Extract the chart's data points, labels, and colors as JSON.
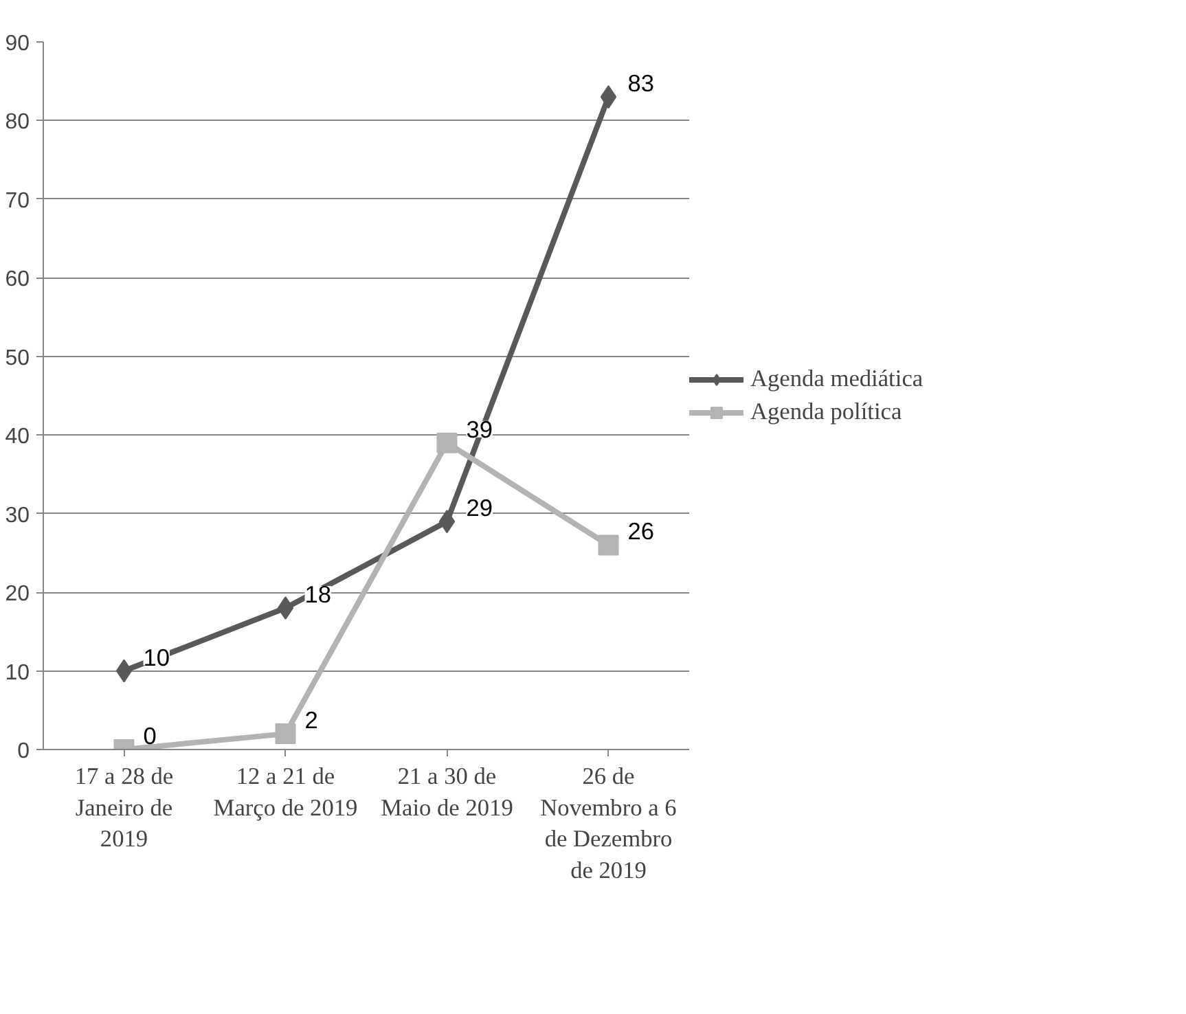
{
  "chart_data": {
    "type": "line",
    "categories": [
      "17 a 28 de Janeiro de 2019",
      "12 a 21 de Março de 2019",
      "21 a 30 de Maio de 2019",
      "26 de Novembro a 6 de Dezembro de 2019"
    ],
    "series": [
      {
        "name": "Agenda mediática",
        "color": "#595959",
        "marker": "diamond",
        "values": [
          10,
          18,
          29,
          83
        ]
      },
      {
        "name": "Agenda política",
        "color": "#b3b3b3",
        "marker": "square",
        "values": [
          0,
          2,
          39,
          26
        ]
      }
    ],
    "ylim": [
      0,
      90
    ],
    "yticks": [
      0,
      10,
      20,
      30,
      40,
      50,
      60,
      70,
      80,
      90
    ],
    "grid": "y",
    "legend": "right",
    "data_labels": true,
    "line_style": "solid"
  }
}
